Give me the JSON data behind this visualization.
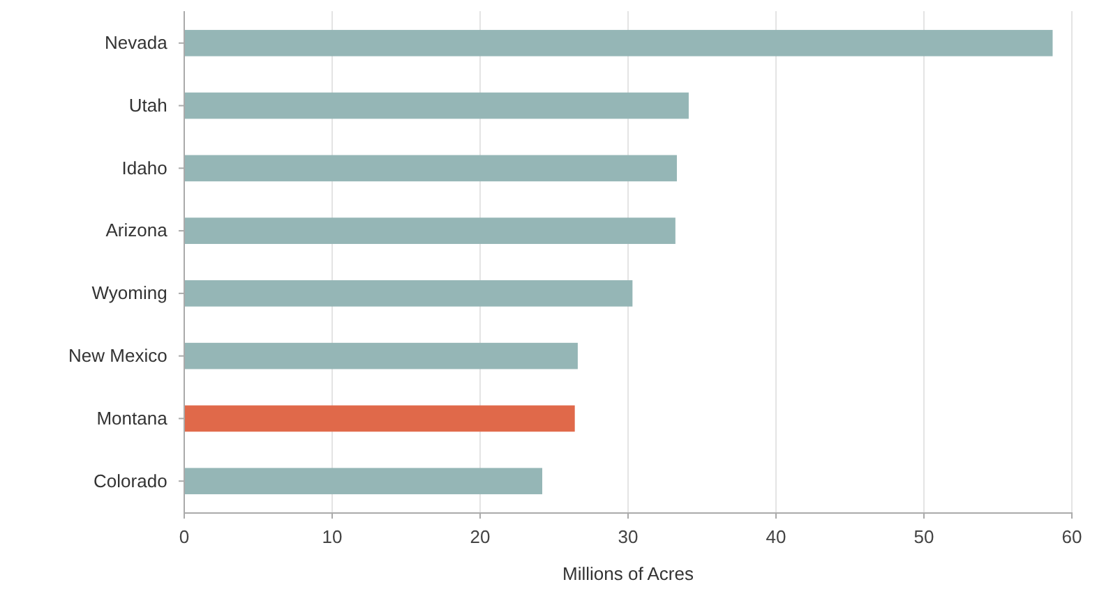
{
  "chart_data": {
    "type": "bar",
    "orientation": "horizontal",
    "categories": [
      "Nevada",
      "Utah",
      "Idaho",
      "Arizona",
      "Wyoming",
      "New Mexico",
      "Montana",
      "Colorado"
    ],
    "values": [
      58.7,
      34.1,
      33.3,
      33.2,
      30.3,
      26.6,
      26.4,
      24.2
    ],
    "colors": [
      "#95b6b6",
      "#95b6b6",
      "#95b6b6",
      "#95b6b6",
      "#95b6b6",
      "#95b6b6",
      "#e0694a",
      "#95b6b6"
    ],
    "xlabel": "Millions of Acres",
    "xlim": [
      0,
      60
    ],
    "xticks": [
      0,
      10,
      20,
      30,
      40,
      50,
      60
    ],
    "grid": "x"
  }
}
